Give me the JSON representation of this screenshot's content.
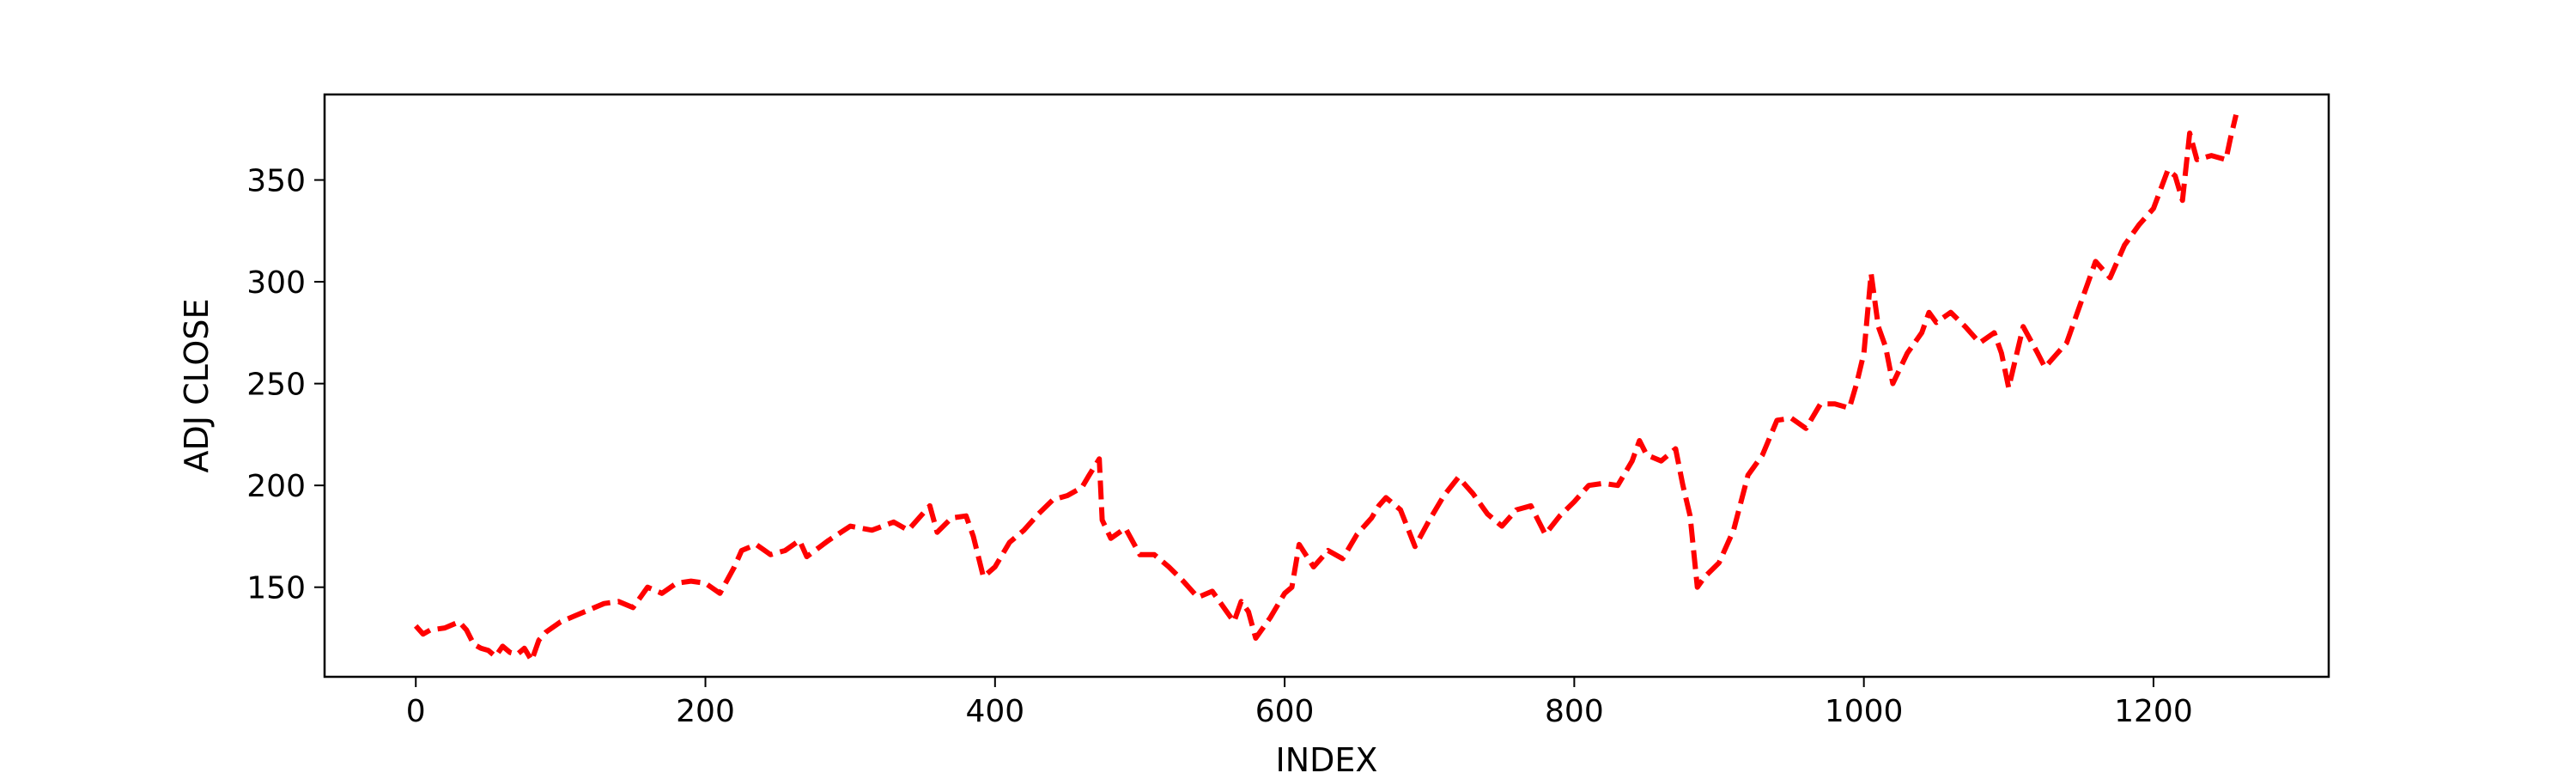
{
  "chart_data": {
    "type": "line",
    "title": "",
    "xlabel": "INDEX",
    "ylabel": "ADJ CLOSE",
    "xlim": [
      -63,
      1321
    ],
    "ylim": [
      106,
      392
    ],
    "xticks": [
      0,
      200,
      400,
      600,
      800,
      1000,
      1200
    ],
    "yticks": [
      150,
      200,
      250,
      300,
      350
    ],
    "grid": false,
    "legend": "none",
    "line_style": "dashed",
    "color": "#ff0000",
    "series": [
      {
        "x": [
          0,
          5,
          10,
          20,
          30,
          35,
          40,
          45,
          50,
          55,
          60,
          65,
          70,
          75,
          80,
          85,
          90,
          100,
          110,
          120,
          130,
          140,
          150,
          160,
          170,
          180,
          190,
          200,
          210,
          220,
          225,
          235,
          245,
          255,
          265,
          270,
          285,
          300,
          315,
          330,
          340,
          350,
          355,
          360,
          370,
          380,
          385,
          392,
          400,
          410,
          420,
          430,
          440,
          450,
          460,
          465,
          472,
          474,
          480,
          490,
          500,
          510,
          520,
          530,
          540,
          550,
          560,
          565,
          570,
          575,
          580,
          590,
          600,
          605,
          610,
          620,
          630,
          640,
          650,
          660,
          665,
          670,
          680,
          690,
          700,
          710,
          720,
          730,
          740,
          750,
          760,
          770,
          780,
          790,
          800,
          810,
          820,
          830,
          840,
          845,
          850,
          860,
          870,
          875,
          880,
          885,
          890,
          900,
          910,
          920,
          930,
          940,
          950,
          960,
          970,
          980,
          990,
          995,
          1000,
          1005,
          1010,
          1015,
          1020,
          1030,
          1040,
          1045,
          1050,
          1060,
          1070,
          1080,
          1090,
          1095,
          1100,
          1110,
          1120,
          1125,
          1130,
          1140,
          1150,
          1160,
          1170,
          1180,
          1190,
          1200,
          1210,
          1215,
          1220,
          1225,
          1230,
          1240,
          1250,
          1253,
          1257
        ],
        "y": [
          131,
          127,
          129,
          130,
          133,
          129,
          122,
          120,
          119,
          116,
          121,
          118,
          117,
          120,
          114,
          124,
          128,
          133,
          136,
          139,
          142,
          143,
          140,
          150,
          147,
          152,
          153,
          152,
          147,
          160,
          168,
          171,
          166,
          168,
          173,
          165,
          173,
          180,
          178,
          182,
          178,
          186,
          190,
          177,
          184,
          185,
          175,
          155,
          160,
          172,
          178,
          186,
          193,
          195,
          199,
          205,
          213,
          183,
          174,
          179,
          166,
          166,
          160,
          153,
          145,
          148,
          138,
          133,
          143,
          138,
          125,
          135,
          147,
          150,
          171,
          160,
          168,
          164,
          176,
          184,
          190,
          194,
          188,
          170,
          183,
          195,
          204,
          196,
          186,
          180,
          188,
          190,
          176,
          185,
          192,
          200,
          201,
          200,
          212,
          222,
          215,
          212,
          218,
          200,
          185,
          150,
          155,
          162,
          178,
          205,
          215,
          232,
          233,
          228,
          240,
          240,
          238,
          250,
          265,
          304,
          278,
          268,
          250,
          265,
          275,
          285,
          280,
          285,
          278,
          270,
          275,
          265,
          248,
          278,
          265,
          258,
          262,
          270,
          290,
          310,
          302,
          318,
          328,
          336,
          355,
          352,
          340,
          373,
          360,
          362,
          360,
          370,
          382
        ]
      }
    ]
  }
}
